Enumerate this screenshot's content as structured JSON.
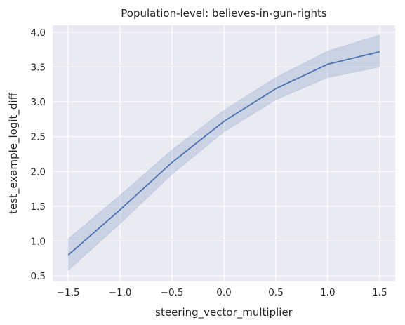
{
  "chart_data": {
    "type": "line",
    "title": "Population-level: believes-in-gun-rights",
    "xlabel": "steering_vector_multiplier",
    "ylabel": "test_example_logit_diff",
    "xlim": [
      -1.65,
      1.65
    ],
    "ylim": [
      0.42,
      4.1
    ],
    "xticks": [
      -1.5,
      -1.0,
      -0.5,
      0.0,
      0.5,
      1.0,
      1.5
    ],
    "xtick_labels": [
      "−1.5",
      "−1.0",
      "−0.5",
      "0.0",
      "0.5",
      "1.0",
      "1.5"
    ],
    "yticks": [
      0.5,
      1.0,
      1.5,
      2.0,
      2.5,
      3.0,
      3.5,
      4.0
    ],
    "ytick_labels": [
      "0.5",
      "1.0",
      "1.5",
      "2.0",
      "2.5",
      "3.0",
      "3.5",
      "4.0"
    ],
    "grid": true,
    "colors": {
      "background": "#eaeaf2",
      "grid": "#ffffff",
      "line": "#4c72b0",
      "band": "#4c72b0"
    },
    "series": [
      {
        "x": [
          -1.5,
          -1.0,
          -0.5,
          0.0,
          0.5,
          1.0,
          1.5
        ],
        "y": [
          0.8,
          1.45,
          2.13,
          2.72,
          3.19,
          3.54,
          3.72
        ],
        "ci_lower": [
          0.58,
          1.25,
          1.96,
          2.57,
          3.03,
          3.35,
          3.5
        ],
        "ci_upper": [
          1.03,
          1.66,
          2.31,
          2.88,
          3.35,
          3.73,
          3.96
        ]
      }
    ]
  }
}
